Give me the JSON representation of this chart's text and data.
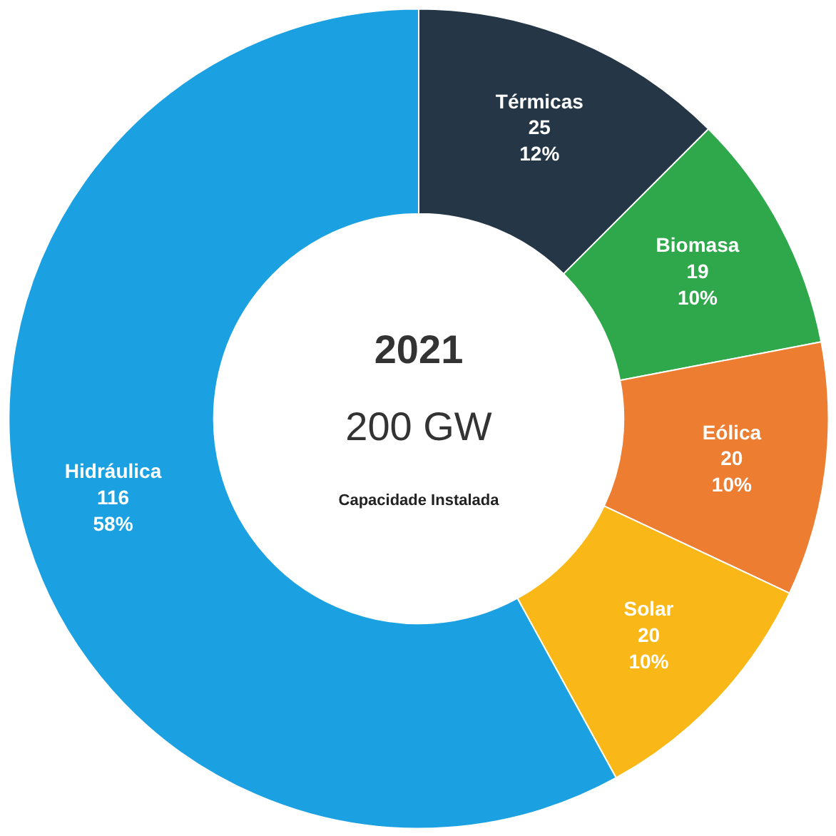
{
  "chart_data": {
    "type": "donut",
    "title": "2021",
    "subtitle": "200 GW",
    "annotations": [
      "Capacidade Instalada"
    ],
    "categories": [
      "Térmicas",
      "Biomasa",
      "Eólica",
      "Solar",
      "Hidráulica"
    ],
    "values": [
      25,
      19,
      20,
      20,
      116
    ],
    "colors": [
      "#253746",
      "#2ea84a",
      "#ed7d31",
      "#f9b818",
      "#1ba1e2"
    ],
    "value_labels": [
      "25\n12%",
      "19\n10%",
      "20\n10%",
      "20\n10%",
      "116\n58%"
    ]
  }
}
